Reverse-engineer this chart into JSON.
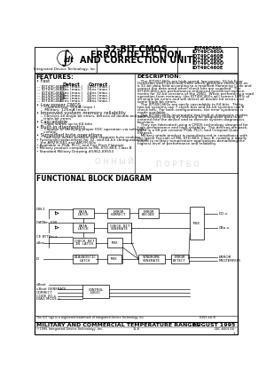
{
  "title_line1": "32-BIT CMOS",
  "title_line2": "ERROR DETECTION",
  "title_line3": "AND CORRECTION UNIT",
  "part_numbers": [
    "IDT49C460",
    "IDT49C460A",
    "IDT49C460B",
    "IDT49C460C",
    "IDT49C460D",
    "IDT49C460E"
  ],
  "company": "Integrated Device Technology, Inc.",
  "features_title": "FEATURES:",
  "desc_title": "DESCRIPTION:",
  "block_diagram_title": "FUNCTIONAL BLOCK DIAGRAM",
  "footer_left": "MILITARY AND COMMERCIAL TEMPERATURE RANGES",
  "footer_right": "AUGUST 1995",
  "footer_copy": "©1995 Integrated Device Technology, Inc.",
  "footer_center": "11-8",
  "footer_page": "DSC-6001/10\n1",
  "trademark": "The IDT logo is a registered trademark of Integrated Device Technology, Inc.",
  "bg_color": "#ffffff",
  "border_color": "#000000"
}
